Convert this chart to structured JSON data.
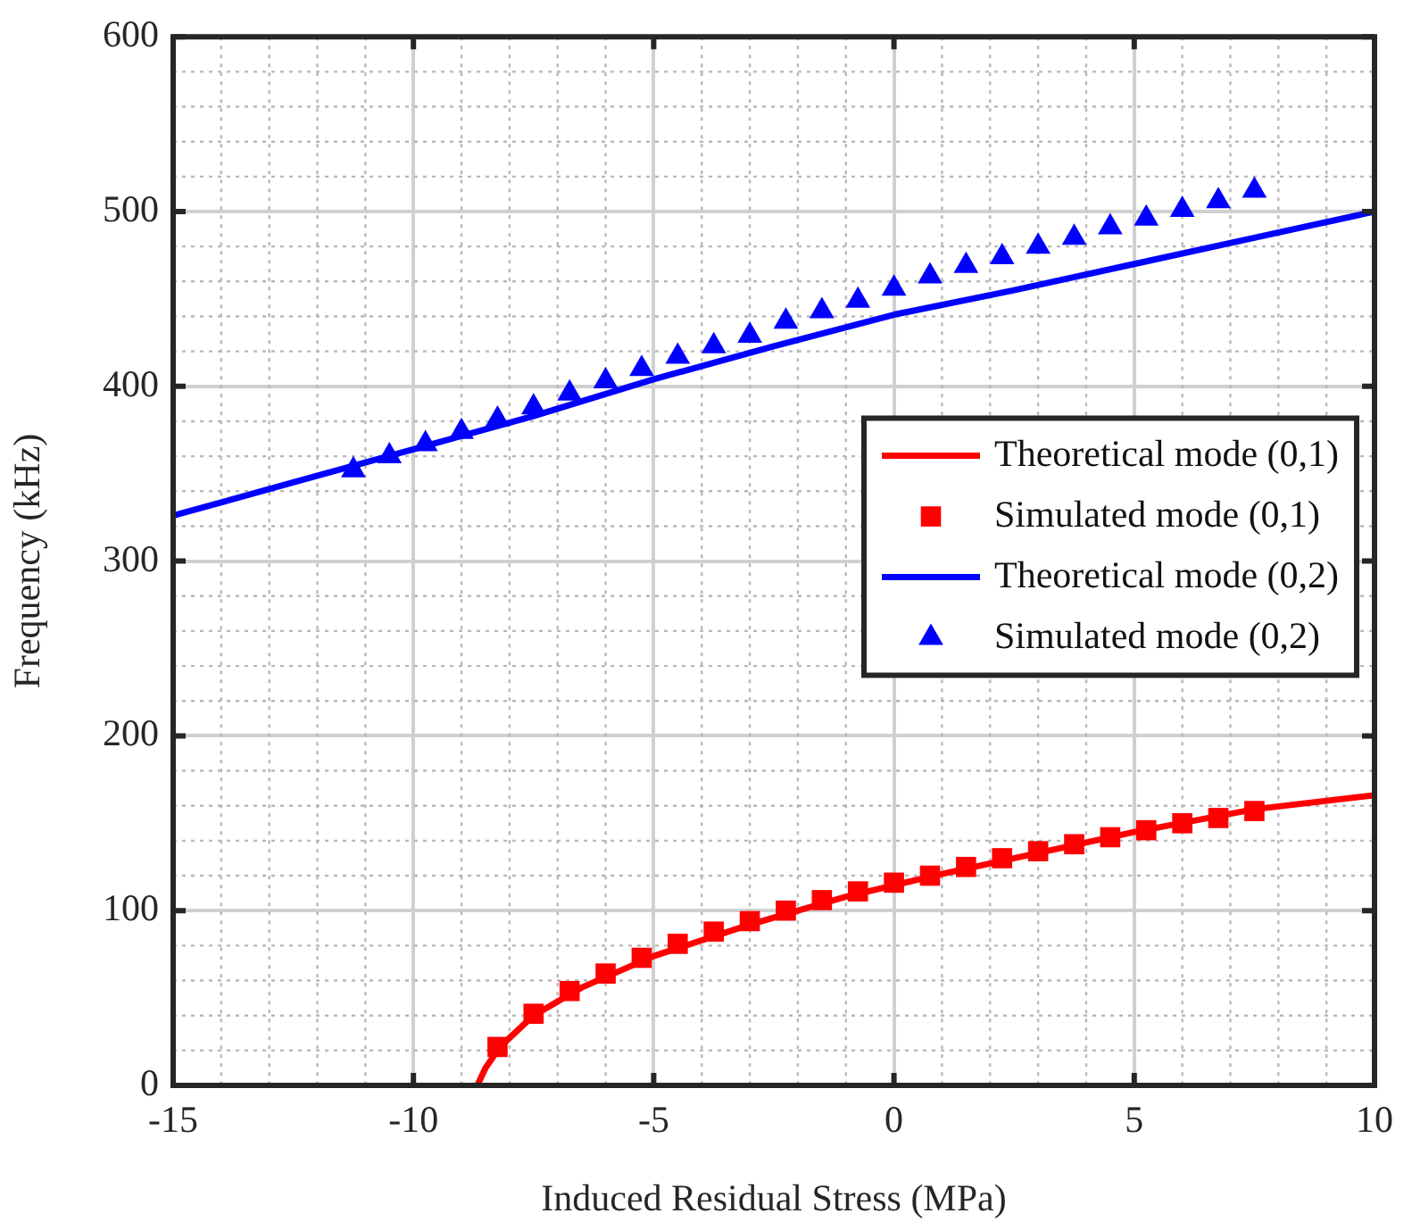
{
  "chart_data": {
    "type": "line",
    "xlabel": "Induced Residual Stress (MPa)",
    "ylabel": "Frequency (kHz)",
    "xlim": [
      -15,
      10
    ],
    "xticks": [
      -15,
      -10,
      -5,
      0,
      5,
      10
    ],
    "ylim": [
      0,
      600
    ],
    "yticks": [
      0,
      100,
      200,
      300,
      400,
      500,
      600
    ],
    "grid": true,
    "legend": "right",
    "series": [
      {
        "name": "Theoretical mode (0,1)",
        "marker": "none",
        "color": "#ff0000",
        "x": [
          -8.67,
          -8.5,
          -8.2,
          -7.5,
          -6.5,
          -5,
          -3,
          -1,
          1,
          3,
          5,
          7.5,
          10
        ],
        "values": [
          0,
          10,
          22,
          40,
          56,
          74,
          92,
          108,
          121,
          133,
          145,
          158,
          166
        ]
      },
      {
        "name": "Simulated mode (0,1)",
        "type": "scatter",
        "marker": "square",
        "color": "#ff0000",
        "x": [
          -8.25,
          -7.5,
          -6.75,
          -6,
          -5.25,
          -4.5,
          -3.75,
          -3,
          -2.25,
          -1.5,
          -0.75,
          0,
          0.75,
          1.5,
          2.25,
          3,
          3.75,
          4.5,
          5.25,
          6,
          6.75,
          7.5
        ],
        "values": [
          22,
          41,
          54,
          64,
          73,
          81,
          88,
          94,
          100,
          106,
          111,
          116,
          120,
          125,
          130,
          134,
          138,
          142,
          146,
          150,
          153,
          157
        ]
      },
      {
        "name": "Theoretical mode (0,2)",
        "marker": "none",
        "color": "#0000ff",
        "x": [
          -15,
          -12.5,
          -10,
          -7.5,
          -5,
          -2.5,
          0,
          2.5,
          5,
          7.5,
          10
        ],
        "values": [
          326,
          345,
          364,
          383,
          404,
          423,
          441,
          455,
          470,
          485,
          500
        ]
      },
      {
        "name": "Simulated mode (0,2)",
        "type": "scatter",
        "marker": "triangle",
        "color": "#0000ff",
        "x": [
          -11.25,
          -10.5,
          -9.75,
          -9,
          -8.25,
          -7.5,
          -6.75,
          -6,
          -5.25,
          -4.5,
          -3.75,
          -3,
          -2.25,
          -1.5,
          -0.75,
          0,
          0.75,
          1.5,
          2.25,
          3,
          3.75,
          4.5,
          5.25,
          6,
          6.75,
          7.5
        ],
        "values": [
          352,
          360,
          367,
          374,
          381,
          388,
          396,
          403,
          410,
          417,
          423,
          429,
          437,
          443,
          449,
          456,
          463,
          469,
          474,
          480,
          485,
          491,
          496,
          501,
          506,
          512
        ]
      }
    ]
  }
}
